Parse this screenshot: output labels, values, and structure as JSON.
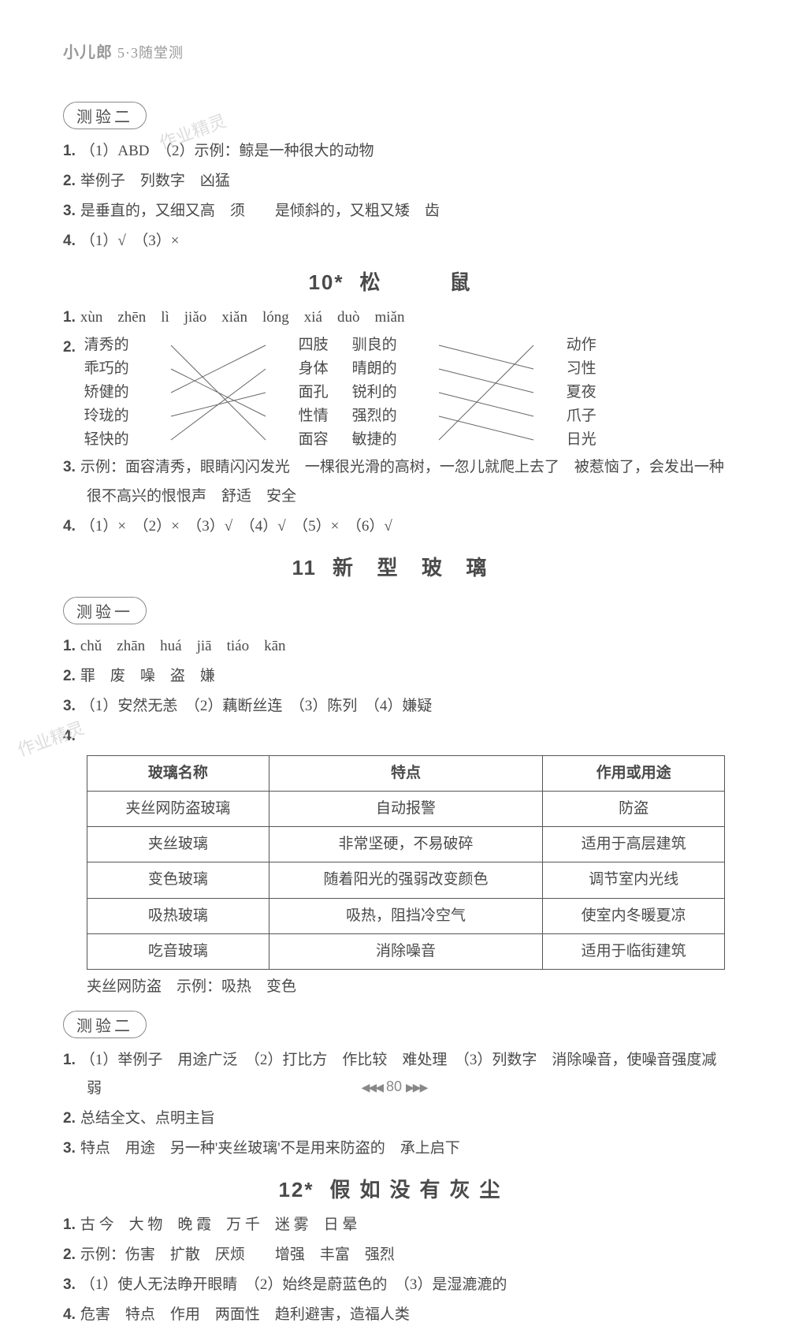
{
  "brand": {
    "main": "小儿郎",
    "sub": "5·3随堂测"
  },
  "testLabels": {
    "t2": "测验二",
    "t1": "测验一"
  },
  "sec_test2a": {
    "i1": "（1）ABD　（2）示例：鲸是一种很大的动物",
    "i2": "举例子　列数字　凶猛",
    "i3": "是垂直的，又细又高　须　　是倾斜的，又粗又矮　齿",
    "i4": "（1）√　（3）×"
  },
  "title10": {
    "num": "10*",
    "text": "松　　鼠"
  },
  "sec10": {
    "i1": "xùn　zhēn　lì　jiǎo　xiǎn　lóng　xiá　duò　miǎn",
    "match_left_a": [
      "清秀的",
      "乖巧的",
      "矫健的",
      "玲珑的",
      "轻快的"
    ],
    "match_right_a": [
      "四肢",
      "身体",
      "面孔",
      "性情",
      "面容"
    ],
    "match_left_b": [
      "驯良的",
      "晴朗的",
      "锐利的",
      "强烈的",
      "敏捷的"
    ],
    "match_right_b": [
      "动作",
      "习性",
      "夏夜",
      "爪子",
      "日光"
    ],
    "i3": "示例：面容清秀，眼睛闪闪发光　一棵很光滑的高树，一忽儿就爬上去了　被惹恼了，会发出一种很不高兴的恨恨声　舒适　安全",
    "i4": "（1）×　（2）×　（3）√　（4）√　（5）×　（6）√"
  },
  "title11": {
    "num": "11",
    "text": "新 型 玻 璃"
  },
  "sec11_t1": {
    "i1": "chǔ　zhān　huá　jiā　tiáo　kān",
    "i2": "罪　废　噪　盗　嫌",
    "i3": "（1）安然无恙　（2）藕断丝连　（3）陈列　（4）嫌疑",
    "table": {
      "headers": [
        "玻璃名称",
        "特点",
        "作用或用途"
      ],
      "rows": [
        [
          "夹丝网防盗玻璃",
          "自动报警",
          "防盗"
        ],
        [
          "夹丝玻璃",
          "非常坚硬，不易破碎",
          "适用于高层建筑"
        ],
        [
          "变色玻璃",
          "随着阳光的强弱改变颜色",
          "调节室内光线"
        ],
        [
          "吸热玻璃",
          "吸热，阻挡冷空气",
          "使室内冬暖夏凉"
        ],
        [
          "吃音玻璃",
          "消除噪音",
          "适用于临街建筑"
        ]
      ]
    },
    "note": "夹丝网防盗　示例：吸热　变色"
  },
  "sec11_t2": {
    "i1": "（1）举例子　用途广泛　（2）打比方　作比较　难处理　（3）列数字　消除噪音，使噪音强度减弱",
    "i2": "总结全文、点明主旨",
    "i3": "特点　用途　另一种'夹丝玻璃'不是用来防盗的　承上启下"
  },
  "title12": {
    "num": "12*",
    "text": "假如没有灰尘"
  },
  "sec12": {
    "i1": "古 今　大 物　晚 霞　万 千　迷 雾　日 晕",
    "i2": "示例：伤害　扩散　厌烦　　增强　丰富　强烈",
    "i3": "（1）使人无法睁开眼睛　（2）始终是蔚蓝色的　（3）是湿漉漉的",
    "i4": "危害　特点　作用　两面性　趋利避害，造福人类"
  },
  "pageNum": "80",
  "watermark": "作业精灵"
}
